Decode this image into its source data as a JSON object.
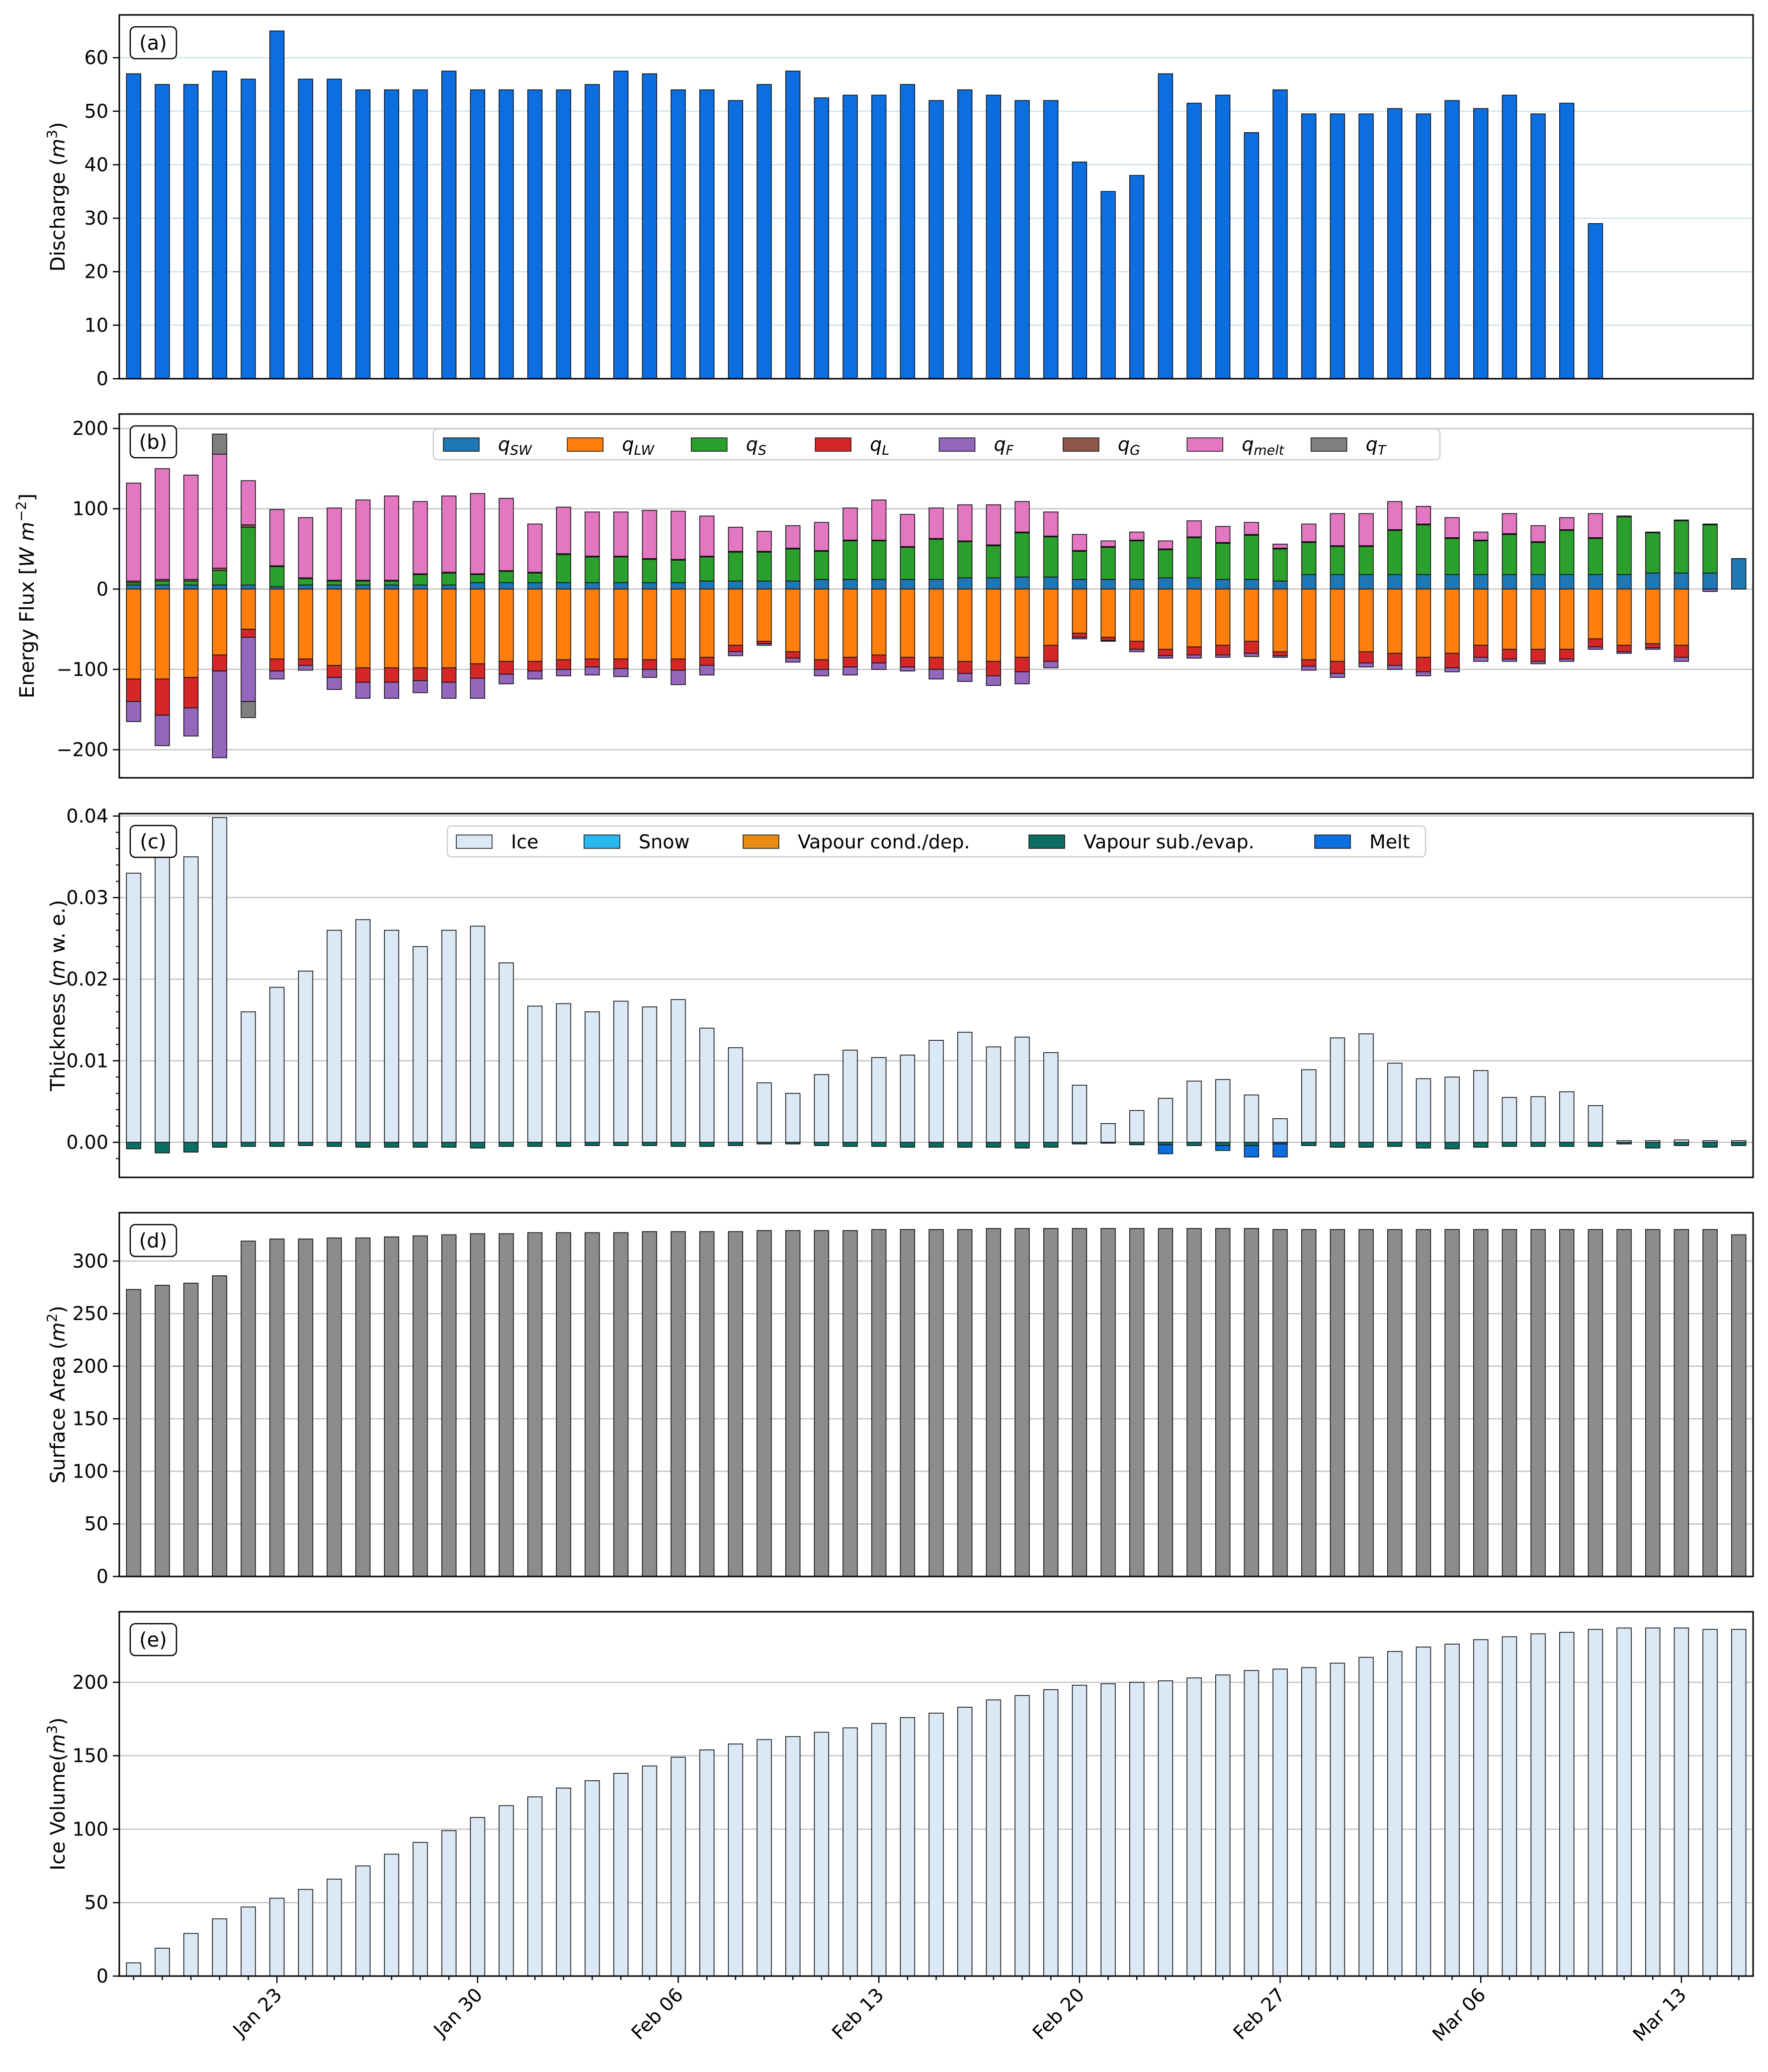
{
  "x_tick_labels": [
    "Jan 23",
    "Jan 30",
    "Feb 06",
    "Feb 13",
    "Feb 20",
    "Feb 27",
    "Mar 06",
    "Mar 13"
  ],
  "chart_data": [
    {
      "id": "a",
      "panel_label": "(a)",
      "type": "bar",
      "ylabel": "Discharge (m³)",
      "ylim": [
        0,
        68
      ],
      "yticks": [
        0,
        10,
        20,
        30,
        40,
        50,
        60
      ],
      "grid": "horizontal",
      "series": [
        {
          "color": "#0d6ee0",
          "values": [
            57,
            55,
            55,
            57.5,
            56,
            65,
            56,
            56,
            54,
            54,
            54,
            57.5,
            54,
            54,
            54,
            54,
            55,
            57.5,
            57,
            54,
            54,
            52,
            55,
            57.5,
            52.5,
            53,
            53,
            55,
            52,
            54,
            53,
            52,
            52,
            40.5,
            35,
            38,
            57,
            51.5,
            53,
            46,
            54,
            49.5,
            49.5,
            49.5,
            50.5,
            49.5,
            52,
            50.5,
            53,
            49.5,
            51.5,
            29
          ]
        }
      ]
    },
    {
      "id": "b",
      "panel_label": "(b)",
      "type": "bar",
      "stacked": true,
      "ylabel": "Energy Flux [W m⁻²]",
      "ylim": [
        -235,
        218
      ],
      "yticks": [
        -200,
        -100,
        0,
        100,
        200
      ],
      "grid": "horizontal",
      "legend": "top-center",
      "series": [
        {
          "key": "sw",
          "name": "q",
          "sub": "SW",
          "color": "#1f77b4",
          "values": [
            5,
            5,
            5,
            5,
            5,
            3,
            5,
            5,
            5,
            5,
            5,
            5,
            8,
            8,
            8,
            8,
            8,
            8,
            8,
            8,
            10,
            10,
            10,
            10,
            12,
            12,
            12,
            12,
            12,
            14,
            14,
            15,
            15,
            12,
            12,
            12,
            14,
            14,
            12,
            12,
            10,
            18,
            18,
            18,
            18,
            18,
            18,
            18,
            18,
            18,
            18,
            18,
            18,
            20,
            20,
            20,
            38
          ]
        },
        {
          "key": "lw",
          "name": "q",
          "sub": "LW",
          "color": "#ff7f0e",
          "values": [
            -112,
            -112,
            -110,
            -82,
            -50,
            -87,
            -87,
            -95,
            -98,
            -98,
            -98,
            -98,
            -93,
            -90,
            -90,
            -88,
            -87,
            -87,
            -88,
            -87,
            -85,
            -70,
            -65,
            -78,
            -88,
            -85,
            -82,
            -85,
            -85,
            -90,
            -90,
            -85,
            -70,
            -55,
            -60,
            -65,
            -75,
            -72,
            -70,
            -65,
            -78,
            -88,
            -90,
            -78,
            -80,
            -85,
            -80,
            -70,
            -75,
            -75,
            -75,
            -62,
            -70,
            -68,
            -70
          ]
        },
        {
          "key": "s",
          "name": "q",
          "sub": "S",
          "color": "#2ca02c",
          "values": [
            3,
            5,
            5,
            18,
            72,
            25,
            8,
            5,
            5,
            5,
            13,
            15,
            10,
            14,
            12,
            35,
            32,
            32,
            29,
            28,
            30,
            36,
            36,
            40,
            35,
            48,
            48,
            40,
            50,
            45,
            40,
            55,
            50,
            35,
            40,
            48,
            35,
            50,
            45,
            55,
            40,
            40,
            35,
            35,
            55,
            62,
            45,
            42,
            50,
            40,
            55,
            45,
            72,
            50,
            65,
            60
          ]
        },
        {
          "key": "l",
          "name": "q",
          "sub": "L",
          "color": "#d62728",
          "values": [
            -28,
            -45,
            -38,
            -20,
            -10,
            -15,
            -8,
            -15,
            -18,
            -18,
            -16,
            -18,
            -18,
            -16,
            -12,
            -12,
            -10,
            -12,
            -12,
            -14,
            -10,
            -8,
            -3,
            -8,
            -12,
            -12,
            -10,
            -12,
            -15,
            -15,
            -18,
            -18,
            -20,
            -5,
            -4,
            -10,
            -8,
            -10,
            -12,
            -15,
            -5,
            -8,
            -15,
            -14,
            -15,
            -18,
            -18,
            -15,
            -12,
            -15,
            -12,
            -10,
            -8,
            -5,
            -15
          ]
        },
        {
          "key": "f",
          "name": "q",
          "sub": "F",
          "color": "#9467bd",
          "values": [
            -25,
            -38,
            -35,
            -108,
            -80,
            -10,
            -6,
            -15,
            -20,
            -20,
            -15,
            -20,
            -25,
            -12,
            -10,
            -8,
            -10,
            -10,
            -10,
            -18,
            -12,
            -5,
            -2,
            -5,
            -8,
            -10,
            -8,
            -5,
            -12,
            -10,
            -12,
            -15,
            -8,
            -2,
            -1,
            -3,
            -3,
            -4,
            -3,
            -4,
            -2,
            -5,
            -5,
            -5,
            -5,
            -5,
            -5,
            -5,
            -3,
            -3,
            -3,
            -3,
            -2,
            -2,
            -5,
            -3
          ]
        },
        {
          "key": "g",
          "name": "q",
          "sub": "G",
          "color": "#8c564b",
          "values": [
            2,
            2,
            2,
            3,
            3,
            1,
            1,
            1,
            1,
            1,
            1,
            1,
            1,
            1,
            1,
            1,
            1,
            1,
            1,
            1,
            1,
            1,
            1,
            1,
            1,
            1,
            1,
            1,
            1,
            1,
            1,
            1,
            1,
            1,
            1,
            1,
            1,
            1,
            1,
            1,
            1,
            1,
            1,
            1,
            1,
            1,
            1,
            1,
            1,
            1,
            1,
            1,
            1,
            1,
            1,
            1
          ]
        },
        {
          "key": "melt",
          "name": "q",
          "sub": "melt",
          "color": "#e377c2",
          "values": [
            122,
            138,
            130,
            142,
            55,
            70,
            75,
            90,
            100,
            105,
            90,
            95,
            100,
            90,
            60,
            58,
            55,
            55,
            60,
            60,
            50,
            30,
            25,
            28,
            35,
            40,
            50,
            40,
            38,
            45,
            50,
            38,
            30,
            20,
            7,
            10,
            10,
            20,
            20,
            15,
            5,
            22,
            40,
            40,
            35,
            22,
            25,
            10,
            25,
            20,
            15,
            30,
            0,
            0,
            0,
            0
          ]
        },
        {
          "key": "t",
          "name": "q",
          "sub": "T",
          "color": "#7f7f7f",
          "values": [
            0,
            0,
            0,
            25,
            -20,
            0,
            0,
            0,
            0,
            0,
            0,
            0,
            0,
            0,
            0,
            0,
            0,
            0,
            0,
            0,
            0,
            0,
            0,
            0,
            0,
            0,
            0,
            0,
            0,
            0,
            0,
            0,
            0,
            0,
            0,
            0,
            0,
            0,
            0,
            0,
            0,
            0,
            0,
            0,
            0,
            0,
            0,
            0,
            0,
            0,
            0,
            0,
            0,
            0,
            0,
            0
          ]
        }
      ]
    },
    {
      "id": "c",
      "panel_label": "(c)",
      "type": "bar",
      "stacked": true,
      "ylabel": "Thickness (m w. e.)",
      "ylim": [
        -0.0043,
        0.0403
      ],
      "yticks": [
        0,
        0.01,
        0.02,
        0.03,
        0.04
      ],
      "ytick_labels": [
        "0.00",
        "0.01",
        "0.02",
        "0.03",
        "0.04"
      ],
      "grid": "horizontal",
      "legend": "top-center",
      "series": [
        {
          "key": "ice",
          "name": "Ice",
          "color": "#dbe9f6",
          "values": [
            0.033,
            0.037,
            0.035,
            0.0398,
            0.016,
            0.019,
            0.021,
            0.026,
            0.0273,
            0.026,
            0.024,
            0.026,
            0.0265,
            0.022,
            0.0167,
            0.017,
            0.016,
            0.0173,
            0.0166,
            0.0175,
            0.014,
            0.0116,
            0.0073,
            0.006,
            0.0083,
            0.0113,
            0.0104,
            0.0107,
            0.0125,
            0.0135,
            0.0117,
            0.0129,
            0.011,
            0.007,
            0.0023,
            0.0039,
            0.0054,
            0.0075,
            0.0077,
            0.0058,
            0.0029,
            0.0089,
            0.0128,
            0.0133,
            0.0097,
            0.0078,
            0.008,
            0.0088,
            0.0055,
            0.0056,
            0.0062,
            0.0045,
            0.0002,
            0.0002,
            0.0003,
            0.0002,
            0.0002
          ]
        },
        {
          "key": "snow",
          "name": "Snow",
          "color": "#2bb8ef",
          "values": []
        },
        {
          "key": "cond",
          "name": "Vapour cond./dep.",
          "color": "#e88d14",
          "values": []
        },
        {
          "key": "sub",
          "name": "Vapour sub./evap.",
          "color": "#0b6e62",
          "values": [
            -0.0008,
            -0.0013,
            -0.0012,
            -0.0006,
            -0.0005,
            -0.0005,
            -0.0004,
            -0.0005,
            -0.0006,
            -0.0006,
            -0.0006,
            -0.0006,
            -0.0007,
            -0.0005,
            -0.0005,
            -0.0005,
            -0.0004,
            -0.0004,
            -0.0004,
            -0.0005,
            -0.0005,
            -0.0004,
            -0.0002,
            -0.0002,
            -0.0004,
            -0.0005,
            -0.0005,
            -0.0006,
            -0.0006,
            -0.0006,
            -0.0006,
            -0.0007,
            -0.0006,
            -0.0002,
            -0.0001,
            -0.0003,
            -0.0003,
            -0.0004,
            -0.0004,
            -0.0004,
            -0.0002,
            -0.0004,
            -0.0006,
            -0.0006,
            -0.0005,
            -0.0007,
            -0.0008,
            -0.0006,
            -0.0005,
            -0.0005,
            -0.0005,
            -0.0005,
            -0.0002,
            -0.0007,
            -0.0004,
            -0.0006,
            -0.0004
          ]
        },
        {
          "key": "melt",
          "name": "Melt",
          "color": "#0d6ee0",
          "values": [
            0,
            0,
            0,
            0,
            0,
            0,
            0,
            0,
            0,
            0,
            0,
            0,
            0,
            0,
            0,
            0,
            0,
            0,
            0,
            0,
            0,
            0,
            0,
            0,
            0,
            0,
            0,
            0,
            0,
            0,
            0,
            0,
            0,
            0,
            0,
            0,
            -0.0011,
            0,
            -0.0006,
            -0.0014,
            -0.0016,
            0,
            0,
            0,
            0,
            0,
            0,
            0,
            0,
            0,
            0,
            0,
            0,
            0,
            0,
            0,
            0
          ]
        }
      ]
    },
    {
      "id": "d",
      "panel_label": "(d)",
      "type": "bar",
      "ylabel": "Surface Area (m²)",
      "ylim": [
        0,
        346
      ],
      "yticks": [
        0,
        50,
        100,
        150,
        200,
        250,
        300
      ],
      "grid": "horizontal",
      "series": [
        {
          "color": "#8c8c8c",
          "values": [
            273,
            277,
            279,
            286,
            319,
            321,
            321,
            322,
            322,
            323,
            324,
            325,
            326,
            326,
            327,
            327,
            327,
            327,
            328,
            328,
            328,
            328,
            329,
            329,
            329,
            329,
            330,
            330,
            330,
            330,
            331,
            331,
            331,
            331,
            331,
            331,
            331,
            331,
            331,
            331,
            330,
            330,
            330,
            330,
            330,
            330,
            330,
            330,
            330,
            330,
            330,
            330,
            330,
            330,
            330,
            330,
            325
          ]
        }
      ]
    },
    {
      "id": "e",
      "panel_label": "(e)",
      "type": "bar",
      "ylabel": "Ice Volume(m³)",
      "ylim": [
        0,
        248
      ],
      "yticks": [
        0,
        50,
        100,
        150,
        200
      ],
      "grid": "horizontal",
      "series": [
        {
          "color": "#dbe9f6",
          "values": [
            9,
            19,
            29,
            39,
            47,
            53,
            59,
            66,
            75,
            83,
            91,
            99,
            108,
            116,
            122,
            128,
            133,
            138,
            143,
            149,
            154,
            158,
            161,
            163,
            166,
            169,
            172,
            176,
            179,
            183,
            188,
            191,
            195,
            198,
            199,
            200,
            201,
            203,
            205,
            208,
            209,
            210,
            213,
            217,
            221,
            224,
            226,
            229,
            231,
            233,
            234,
            236,
            237,
            237,
            237,
            236,
            236
          ]
        }
      ]
    }
  ]
}
